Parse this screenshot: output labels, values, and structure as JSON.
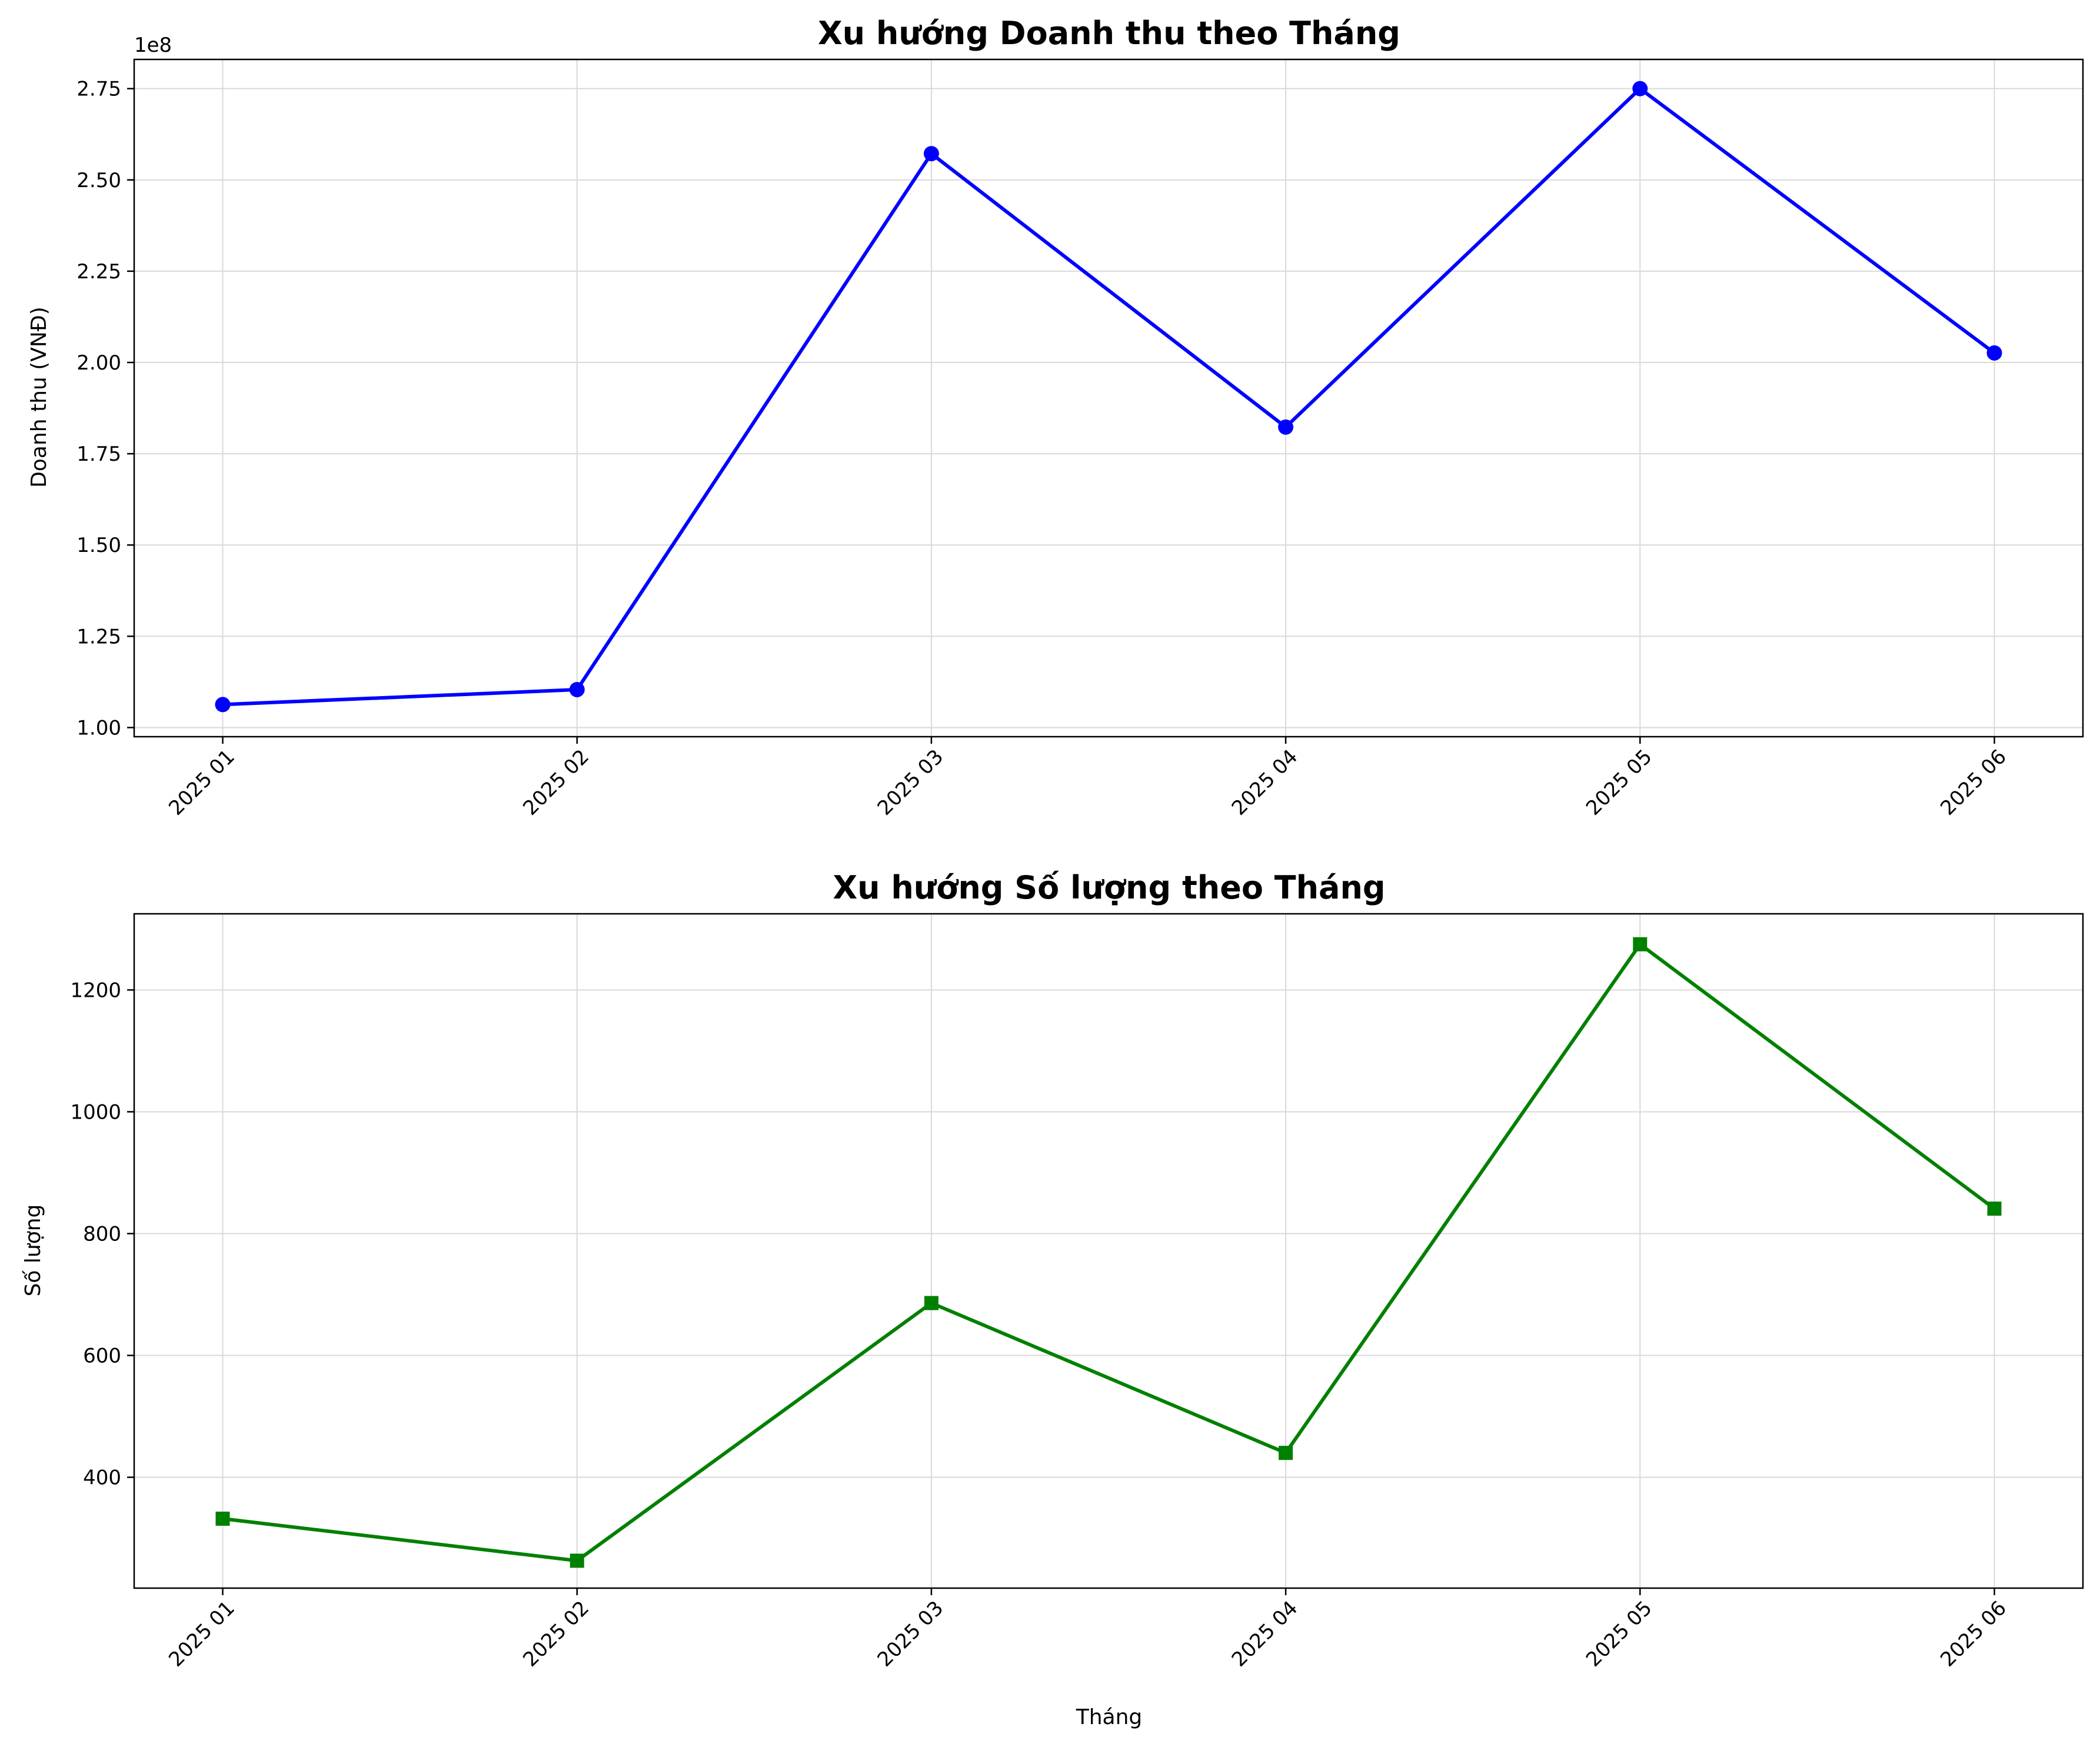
{
  "chart_data": [
    {
      "type": "line",
      "title": "Xu hướng Doanh thu theo Tháng",
      "xlabel": "",
      "ylabel": "Doanh thu (VNĐ)",
      "y_offset_label": "1e8",
      "categories": [
        "2025 01",
        "2025 02",
        "2025 03",
        "2025 04",
        "2025 05",
        "2025 06"
      ],
      "y_ticks": [
        1.0,
        1.25,
        1.5,
        1.75,
        2.0,
        2.25,
        2.5,
        2.75
      ],
      "y_tick_labels": [
        "1.00",
        "1.25",
        "1.50",
        "1.75",
        "2.00",
        "2.25",
        "2.50",
        "2.75"
      ],
      "ylim": [
        0.975,
        2.83
      ],
      "series": [
        {
          "values": [
            1.063,
            1.104,
            2.572,
            1.823,
            2.75,
            2.026
          ],
          "color": "#0000ff",
          "marker": "circle"
        }
      ],
      "grid": true
    },
    {
      "type": "line",
      "title": "Xu hướng Số lượng theo Tháng",
      "xlabel": "Tháng",
      "ylabel": "Số lượng",
      "categories": [
        "2025 01",
        "2025 02",
        "2025 03",
        "2025 04",
        "2025 05",
        "2025 06"
      ],
      "y_ticks": [
        400,
        600,
        800,
        1000,
        1200
      ],
      "y_tick_labels": [
        "400",
        "600",
        "800",
        "1000",
        "1200"
      ],
      "ylim": [
        218,
        1325
      ],
      "series": [
        {
          "values": [
            332,
            263,
            686,
            440,
            1275,
            841
          ],
          "color": "#008000",
          "marker": "square"
        }
      ],
      "grid": true
    }
  ]
}
